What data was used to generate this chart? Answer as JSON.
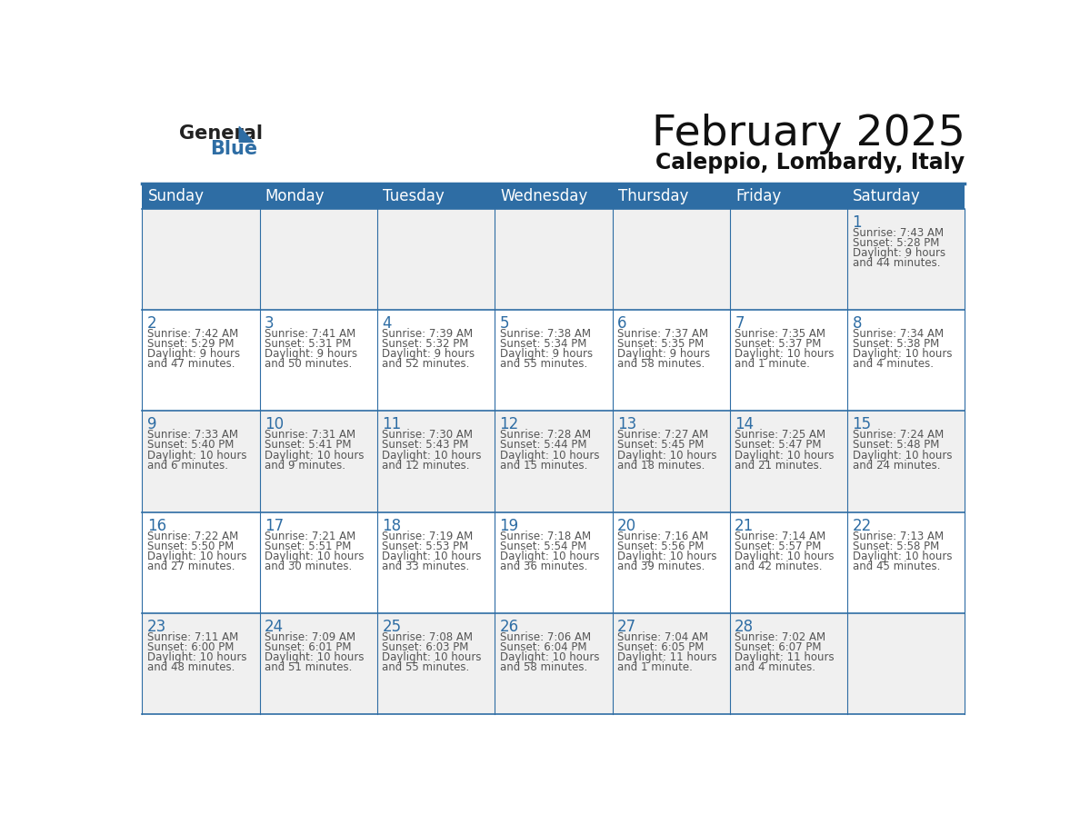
{
  "title": "February 2025",
  "subtitle": "Caleppio, Lombardy, Italy",
  "header_bg": "#2E6DA4",
  "header_text_color": "#FFFFFF",
  "day_names": [
    "Sunday",
    "Monday",
    "Tuesday",
    "Wednesday",
    "Thursday",
    "Friday",
    "Saturday"
  ],
  "background_color": "#FFFFFF",
  "cell_bg_light": "#F0F0F0",
  "cell_bg_white": "#FFFFFF",
  "border_color": "#2E6DA4",
  "day_number_color": "#2E6DA4",
  "info_text_color": "#555555",
  "logo_general_color": "#222222",
  "logo_blue_color": "#2E6DA4",
  "days": [
    {
      "day": 1,
      "col": 6,
      "row": 0,
      "sunrise": "7:43 AM",
      "sunset": "5:28 PM",
      "daylight": "9 hours and 44 minutes."
    },
    {
      "day": 2,
      "col": 0,
      "row": 1,
      "sunrise": "7:42 AM",
      "sunset": "5:29 PM",
      "daylight": "9 hours and 47 minutes."
    },
    {
      "day": 3,
      "col": 1,
      "row": 1,
      "sunrise": "7:41 AM",
      "sunset": "5:31 PM",
      "daylight": "9 hours and 50 minutes."
    },
    {
      "day": 4,
      "col": 2,
      "row": 1,
      "sunrise": "7:39 AM",
      "sunset": "5:32 PM",
      "daylight": "9 hours and 52 minutes."
    },
    {
      "day": 5,
      "col": 3,
      "row": 1,
      "sunrise": "7:38 AM",
      "sunset": "5:34 PM",
      "daylight": "9 hours and 55 minutes."
    },
    {
      "day": 6,
      "col": 4,
      "row": 1,
      "sunrise": "7:37 AM",
      "sunset": "5:35 PM",
      "daylight": "9 hours and 58 minutes."
    },
    {
      "day": 7,
      "col": 5,
      "row": 1,
      "sunrise": "7:35 AM",
      "sunset": "5:37 PM",
      "daylight": "10 hours and 1 minute."
    },
    {
      "day": 8,
      "col": 6,
      "row": 1,
      "sunrise": "7:34 AM",
      "sunset": "5:38 PM",
      "daylight": "10 hours and 4 minutes."
    },
    {
      "day": 9,
      "col": 0,
      "row": 2,
      "sunrise": "7:33 AM",
      "sunset": "5:40 PM",
      "daylight": "10 hours and 6 minutes."
    },
    {
      "day": 10,
      "col": 1,
      "row": 2,
      "sunrise": "7:31 AM",
      "sunset": "5:41 PM",
      "daylight": "10 hours and 9 minutes."
    },
    {
      "day": 11,
      "col": 2,
      "row": 2,
      "sunrise": "7:30 AM",
      "sunset": "5:43 PM",
      "daylight": "10 hours and 12 minutes."
    },
    {
      "day": 12,
      "col": 3,
      "row": 2,
      "sunrise": "7:28 AM",
      "sunset": "5:44 PM",
      "daylight": "10 hours and 15 minutes."
    },
    {
      "day": 13,
      "col": 4,
      "row": 2,
      "sunrise": "7:27 AM",
      "sunset": "5:45 PM",
      "daylight": "10 hours and 18 minutes."
    },
    {
      "day": 14,
      "col": 5,
      "row": 2,
      "sunrise": "7:25 AM",
      "sunset": "5:47 PM",
      "daylight": "10 hours and 21 minutes."
    },
    {
      "day": 15,
      "col": 6,
      "row": 2,
      "sunrise": "7:24 AM",
      "sunset": "5:48 PM",
      "daylight": "10 hours and 24 minutes."
    },
    {
      "day": 16,
      "col": 0,
      "row": 3,
      "sunrise": "7:22 AM",
      "sunset": "5:50 PM",
      "daylight": "10 hours and 27 minutes."
    },
    {
      "day": 17,
      "col": 1,
      "row": 3,
      "sunrise": "7:21 AM",
      "sunset": "5:51 PM",
      "daylight": "10 hours and 30 minutes."
    },
    {
      "day": 18,
      "col": 2,
      "row": 3,
      "sunrise": "7:19 AM",
      "sunset": "5:53 PM",
      "daylight": "10 hours and 33 minutes."
    },
    {
      "day": 19,
      "col": 3,
      "row": 3,
      "sunrise": "7:18 AM",
      "sunset": "5:54 PM",
      "daylight": "10 hours and 36 minutes."
    },
    {
      "day": 20,
      "col": 4,
      "row": 3,
      "sunrise": "7:16 AM",
      "sunset": "5:56 PM",
      "daylight": "10 hours and 39 minutes."
    },
    {
      "day": 21,
      "col": 5,
      "row": 3,
      "sunrise": "7:14 AM",
      "sunset": "5:57 PM",
      "daylight": "10 hours and 42 minutes."
    },
    {
      "day": 22,
      "col": 6,
      "row": 3,
      "sunrise": "7:13 AM",
      "sunset": "5:58 PM",
      "daylight": "10 hours and 45 minutes."
    },
    {
      "day": 23,
      "col": 0,
      "row": 4,
      "sunrise": "7:11 AM",
      "sunset": "6:00 PM",
      "daylight": "10 hours and 48 minutes."
    },
    {
      "day": 24,
      "col": 1,
      "row": 4,
      "sunrise": "7:09 AM",
      "sunset": "6:01 PM",
      "daylight": "10 hours and 51 minutes."
    },
    {
      "day": 25,
      "col": 2,
      "row": 4,
      "sunrise": "7:08 AM",
      "sunset": "6:03 PM",
      "daylight": "10 hours and 55 minutes."
    },
    {
      "day": 26,
      "col": 3,
      "row": 4,
      "sunrise": "7:06 AM",
      "sunset": "6:04 PM",
      "daylight": "10 hours and 58 minutes."
    },
    {
      "day": 27,
      "col": 4,
      "row": 4,
      "sunrise": "7:04 AM",
      "sunset": "6:05 PM",
      "daylight": "11 hours and 1 minute."
    },
    {
      "day": 28,
      "col": 5,
      "row": 4,
      "sunrise": "7:02 AM",
      "sunset": "6:07 PM",
      "daylight": "11 hours and 4 minutes."
    }
  ]
}
